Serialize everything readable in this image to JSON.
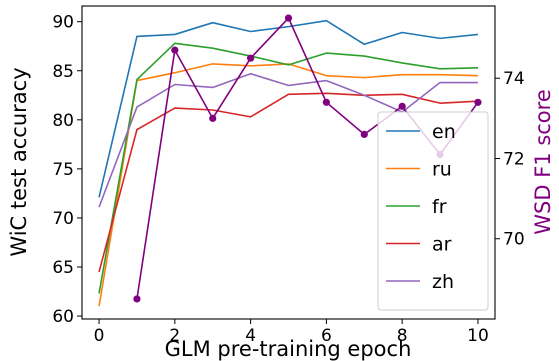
{
  "chart_data": {
    "type": "line",
    "xlabel": "GLM pre-training epoch",
    "ylabel": "WiC test accuracy",
    "ylabel_right": "WSD F1 score",
    "xlim": [
      -0.45,
      10.45
    ],
    "ylim": [
      59.7,
      91.6
    ],
    "ylim_right": [
      68.0,
      75.8
    ],
    "xticks": [
      0,
      2,
      4,
      6,
      8,
      10
    ],
    "yticks": [
      60,
      65,
      70,
      75,
      80,
      85,
      90
    ],
    "yticks_right": [
      70,
      72,
      74
    ],
    "legend": "bottom-right",
    "grid": false,
    "x": [
      0,
      1,
      2,
      3,
      4,
      5,
      6,
      7,
      8,
      9,
      10
    ],
    "series": [
      {
        "name": "en",
        "color": "#1f77b4",
        "values": [
          72.1,
          88.5,
          88.7,
          89.9,
          89.0,
          89.5,
          90.1,
          87.7,
          88.9,
          88.3,
          88.7
        ]
      },
      {
        "name": "ru",
        "color": "#ff7f0e",
        "values": [
          61.0,
          84.0,
          84.8,
          85.7,
          85.5,
          85.7,
          84.5,
          84.3,
          84.6,
          84.6,
          84.5
        ]
      },
      {
        "name": "fr",
        "color": "#2ca02c",
        "values": [
          62.3,
          84.1,
          87.8,
          87.3,
          86.5,
          85.6,
          86.8,
          86.5,
          85.8,
          85.2,
          85.3
        ]
      },
      {
        "name": "ar",
        "color": "#d62728",
        "values": [
          64.5,
          79.0,
          81.2,
          81.0,
          80.3,
          82.6,
          82.7,
          82.5,
          82.6,
          81.7,
          81.9
        ]
      },
      {
        "name": "zh",
        "color": "#9467bd",
        "values": [
          71.1,
          81.3,
          83.6,
          83.3,
          84.7,
          83.5,
          84.0,
          82.5,
          80.8,
          83.8,
          83.8
        ]
      }
    ],
    "right_series": {
      "color": "#800080",
      "x": [
        1,
        2,
        3,
        4,
        5,
        6,
        7,
        8,
        9,
        10
      ],
      "values": [
        68.5,
        74.7,
        73.0,
        74.5,
        75.5,
        73.4,
        72.6,
        73.3,
        72.1,
        73.4
      ]
    }
  }
}
